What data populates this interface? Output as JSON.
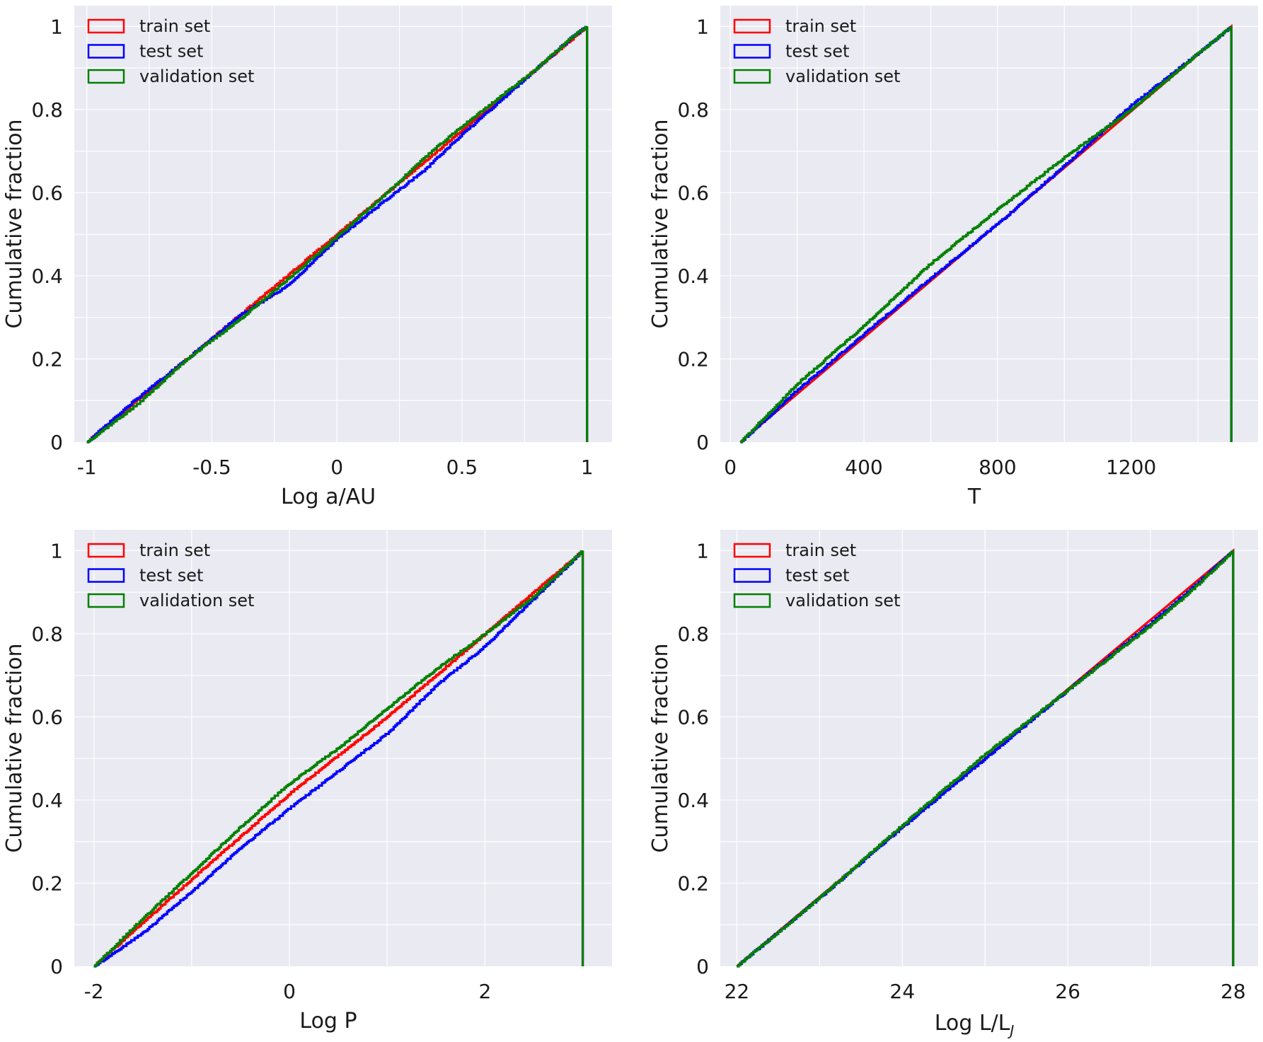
{
  "chart_data": [
    {
      "type": "line",
      "subtype": "cumulative-step",
      "xlabel": "Log a/AU",
      "ylabel": "Cumulative fraction",
      "xlim": [
        -1.05,
        1.1
      ],
      "ylim": [
        0,
        1.05
      ],
      "xticks": [
        -1,
        -0.5,
        0,
        0.5,
        1
      ],
      "xtick_labels": [
        "-1",
        "-0.5",
        "0",
        "0.5",
        "1"
      ],
      "yticks": [
        0,
        0.2,
        0.4,
        0.6,
        0.8,
        1
      ],
      "ytick_labels": [
        "0",
        "0.2",
        "0.4",
        "0.6",
        "0.8",
        "1"
      ],
      "grid": true,
      "legend": "top-left",
      "series": [
        {
          "name": "train set",
          "color": "#ff0000",
          "x": [
            -1,
            -0.5,
            0,
            0.5,
            1
          ],
          "y": [
            0,
            0.25,
            0.5,
            0.75,
            1
          ]
        },
        {
          "name": "test set",
          "color": "#0000ff",
          "x": [
            -1,
            -0.8,
            -0.6,
            -0.4,
            -0.2,
            0,
            0.2,
            0.35,
            0.5,
            0.65,
            0.8,
            0.95,
            1
          ],
          "y": [
            0,
            0.105,
            0.2,
            0.3,
            0.375,
            0.49,
            0.585,
            0.655,
            0.74,
            0.82,
            0.9,
            0.98,
            1
          ]
        },
        {
          "name": "validation set",
          "color": "#008000",
          "x": [
            -1,
            -0.8,
            -0.6,
            -0.4,
            -0.2,
            0,
            0.2,
            0.35,
            0.5,
            0.65,
            0.8,
            0.95,
            1
          ],
          "y": [
            0,
            0.09,
            0.2,
            0.29,
            0.39,
            0.495,
            0.6,
            0.685,
            0.76,
            0.83,
            0.9,
            0.98,
            1
          ]
        }
      ]
    },
    {
      "type": "line",
      "subtype": "cumulative-step",
      "xlabel": "T",
      "ylabel": "Cumulative fraction",
      "xlim": [
        -30,
        1580
      ],
      "ylim": [
        0,
        1.05
      ],
      "xticks": [
        0,
        400,
        800,
        1200
      ],
      "xtick_labels": [
        "0",
        "400",
        "800",
        "1200"
      ],
      "yticks": [
        0,
        0.2,
        0.4,
        0.6,
        0.8,
        1
      ],
      "ytick_labels": [
        "0",
        "0.2",
        "0.4",
        "0.6",
        "0.8",
        "1"
      ],
      "grid": true,
      "legend": "top-left",
      "series": [
        {
          "name": "train set",
          "color": "#ff0000",
          "x": [
            30,
            1500
          ],
          "y": [
            0,
            1
          ]
        },
        {
          "name": "test set",
          "color": "#0000ff",
          "x": [
            30,
            200,
            400,
            600,
            800,
            1000,
            1200,
            1400,
            1500
          ],
          "y": [
            0,
            0.125,
            0.26,
            0.395,
            0.525,
            0.665,
            0.81,
            0.935,
            1
          ]
        },
        {
          "name": "validation set",
          "color": "#008000",
          "x": [
            30,
            200,
            400,
            600,
            800,
            1000,
            1200,
            1400,
            1500
          ],
          "y": [
            0,
            0.14,
            0.28,
            0.43,
            0.56,
            0.685,
            0.8,
            0.935,
            1
          ]
        }
      ]
    },
    {
      "type": "line",
      "subtype": "cumulative-step",
      "xlabel": "Log P",
      "ylabel": "Cumulative fraction",
      "xlim": [
        -2.2,
        3.3
      ],
      "ylim": [
        0,
        1.05
      ],
      "xticks": [
        -2,
        0,
        2
      ],
      "xtick_labels": [
        "-2",
        "0",
        "2"
      ],
      "yticks": [
        0,
        0.2,
        0.4,
        0.6,
        0.8,
        1
      ],
      "ytick_labels": [
        "0",
        "0.2",
        "0.4",
        "0.6",
        "0.8",
        "1"
      ],
      "grid": true,
      "legend": "top-left",
      "series": [
        {
          "name": "train set",
          "color": "#ff0000",
          "x": [
            -2,
            -1,
            0,
            1,
            2,
            3
          ],
          "y": [
            0,
            0.21,
            0.415,
            0.6,
            0.8,
            1
          ]
        },
        {
          "name": "test set",
          "color": "#0000ff",
          "x": [
            -2,
            -1.5,
            -1,
            -0.5,
            0,
            0.5,
            1,
            1.5,
            2,
            2.5,
            3
          ],
          "y": [
            0,
            0.08,
            0.18,
            0.285,
            0.38,
            0.47,
            0.56,
            0.675,
            0.77,
            0.885,
            1
          ]
        },
        {
          "name": "validation set",
          "color": "#008000",
          "x": [
            -2,
            -1.5,
            -1,
            -0.5,
            0,
            0.5,
            1,
            1.5,
            2,
            2.5,
            3
          ],
          "y": [
            0,
            0.115,
            0.225,
            0.335,
            0.44,
            0.525,
            0.62,
            0.715,
            0.8,
            0.89,
            1
          ]
        }
      ]
    },
    {
      "type": "line",
      "subtype": "cumulative-step",
      "xlabel": "Log L/L",
      "xlabel_sub": "J",
      "ylabel": "Cumulative fraction",
      "xlim": [
        21.8,
        28.3
      ],
      "ylim": [
        0,
        1.05
      ],
      "xticks": [
        22,
        24,
        26,
        28
      ],
      "xtick_labels": [
        "22",
        "24",
        "26",
        "28"
      ],
      "yticks": [
        0,
        0.2,
        0.4,
        0.6,
        0.8,
        1
      ],
      "ytick_labels": [
        "0",
        "0.2",
        "0.4",
        "0.6",
        "0.8",
        "1"
      ],
      "grid": true,
      "legend": "top-left",
      "series": [
        {
          "name": "train set",
          "color": "#ff0000",
          "x": [
            22,
            28
          ],
          "y": [
            0,
            1
          ]
        },
        {
          "name": "test set",
          "color": "#0000ff",
          "x": [
            22,
            23,
            24,
            25,
            26,
            27,
            27.5,
            28
          ],
          "y": [
            0,
            0.165,
            0.335,
            0.5,
            0.665,
            0.825,
            0.91,
            1
          ]
        },
        {
          "name": "validation set",
          "color": "#008000",
          "x": [
            22,
            23,
            24,
            25,
            26,
            27,
            27.5,
            28
          ],
          "y": [
            0,
            0.165,
            0.34,
            0.51,
            0.665,
            0.82,
            0.905,
            1
          ]
        }
      ]
    }
  ]
}
